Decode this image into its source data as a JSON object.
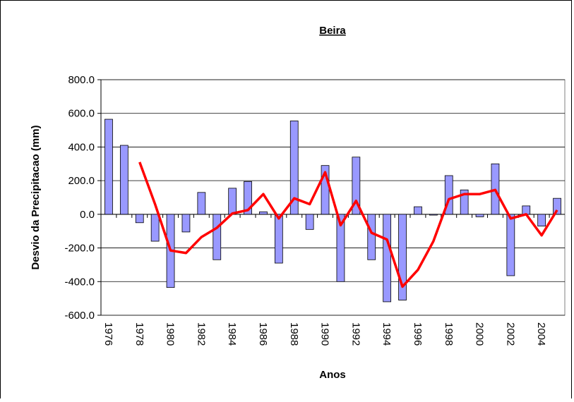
{
  "chart_data": {
    "type": "bar",
    "title": "Beira",
    "x_label": "Anos",
    "y_label": "Desvio da Precipitacao (mm)",
    "categories": [
      "1976",
      null,
      "1978",
      null,
      "1980",
      null,
      "1982",
      null,
      "1984",
      null,
      "1986",
      null,
      "1988",
      null,
      "1990",
      null,
      "1992",
      null,
      "1994",
      null,
      "1996",
      null,
      "1998",
      null,
      "2000",
      null,
      "2002",
      null,
      "2004",
      null
    ],
    "series": [
      {
        "type": "bar",
        "color": "#9999ff",
        "values": [
          565,
          410,
          -50,
          -160,
          -435,
          -105,
          130,
          -270,
          155,
          195,
          15,
          -290,
          555,
          -90,
          290,
          -400,
          340,
          -270,
          -520,
          -510,
          45,
          -5,
          230,
          145,
          -15,
          300,
          -365,
          50,
          -70,
          95
        ]
      },
      {
        "type": "line",
        "color": "#ff0000",
        "values": [
          null,
          null,
          310,
          60,
          -215,
          -230,
          -135,
          -80,
          5,
          25,
          120,
          -25,
          95,
          60,
          250,
          -65,
          80,
          -110,
          -150,
          -430,
          -330,
          -160,
          90,
          120,
          120,
          145,
          -25,
          0,
          -125,
          25
        ]
      }
    ],
    "ylim": [
      -600,
      800
    ],
    "yticks": [
      {
        "value": -600,
        "label": "-600.0"
      },
      {
        "value": -400,
        "label": "-400.0"
      },
      {
        "value": -200,
        "label": "-200.0"
      },
      {
        "value": 0,
        "label": "0.0"
      },
      {
        "value": 200,
        "label": "200.0"
      },
      {
        "value": 400,
        "label": "400.0"
      },
      {
        "value": 600,
        "label": "600.0"
      },
      {
        "value": 800,
        "label": "800.0"
      }
    ],
    "grid": true
  }
}
